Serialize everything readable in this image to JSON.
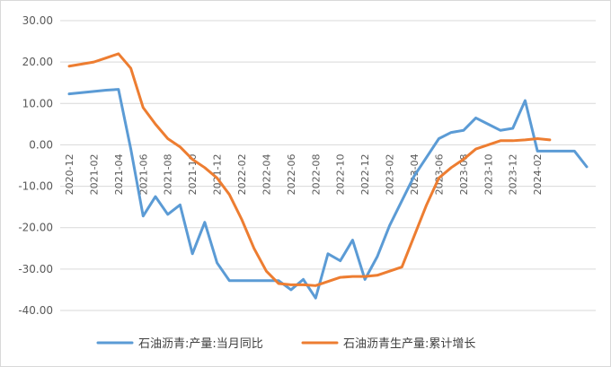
{
  "chart_data": {
    "type": "line",
    "title": "",
    "xlabel": "",
    "ylabel": "",
    "ylim": [
      -40,
      30
    ],
    "y_ticks": [
      "30.00",
      "20.00",
      "10.00",
      "0.00",
      "-10.00",
      "-20.00",
      "-30.00",
      "-40.00"
    ],
    "x_tick_labels": [
      "2020-12",
      "2021-02",
      "2021-04",
      "2021-06",
      "2021-08",
      "2021-10",
      "2021-12",
      "2022-02",
      "2022-04",
      "2022-06",
      "2022-08",
      "2022-10",
      "2022-12",
      "2023-02",
      "2023-04",
      "2023-06",
      "2023-08",
      "2023-10",
      "2023-12",
      "2024-02"
    ],
    "grid": "horizontal",
    "legend_position": "bottom",
    "series": [
      {
        "name": "石油沥青:产量:当月同比",
        "color": "#5b9bd5",
        "values": [
          12.3,
          12.6,
          12.9,
          13.2,
          13.4,
          -1.0,
          -17.2,
          -12.5,
          -16.8,
          -14.5,
          -26.3,
          -18.7,
          -28.5,
          -32.8,
          -32.8,
          -32.8,
          -32.8,
          -32.8,
          -35.0,
          -32.5,
          -37.0,
          -26.3,
          -28.0,
          -23.0,
          -32.5,
          -27.0,
          -19.5,
          -13.5,
          -7.5,
          -3.0,
          1.5,
          3.0,
          3.5,
          6.5,
          5.0,
          3.5,
          4.0,
          10.7,
          -1.5,
          -1.5,
          -1.5,
          -1.5,
          -5.3
        ]
      },
      {
        "name": "石油沥青生产量:累计增长",
        "color": "#ed7d31",
        "values": [
          19.0,
          null,
          20.0,
          21.0,
          22.0,
          18.5,
          9.0,
          5.0,
          1.5,
          -0.5,
          -3.5,
          -5.5,
          -8.0,
          -12.0,
          -18.0,
          -25.0,
          -30.5,
          -33.5,
          -33.8,
          -33.8,
          -34.0,
          -33.0,
          -32.0,
          -31.8,
          -31.8,
          -31.5,
          -30.5,
          -29.5,
          -22.0,
          -14.5,
          -8.0,
          -5.5,
          -3.5,
          -1.0,
          0.0,
          1.0,
          1.0,
          1.2,
          1.5,
          1.2,
          null,
          null,
          null
        ]
      }
    ]
  }
}
